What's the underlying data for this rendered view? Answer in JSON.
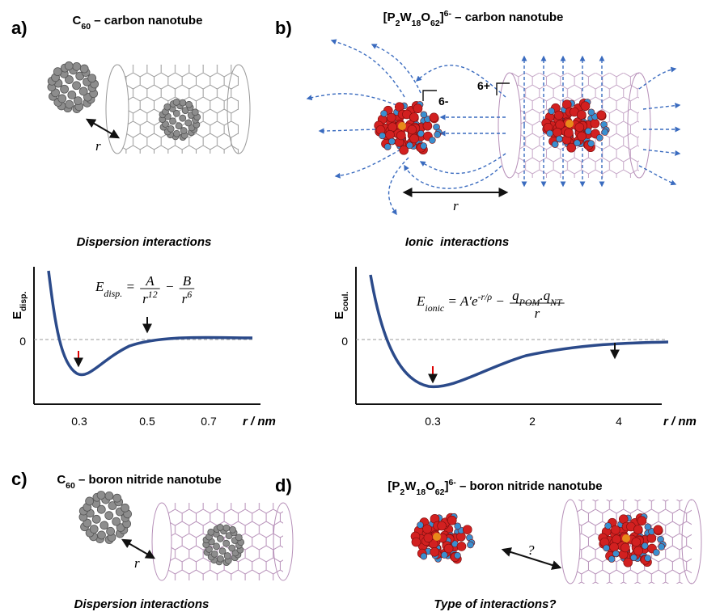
{
  "panels": {
    "a": {
      "label": "a)",
      "title": [
        {
          "text": "C"
        },
        {
          "text": "60",
          "style": "sub"
        },
        {
          "text": " – carbon nanotube"
        }
      ],
      "distance_label": "r"
    },
    "b": {
      "label": "b)",
      "title": [
        {
          "text": "[P"
        },
        {
          "text": "2",
          "style": "sub"
        },
        {
          "text": "W"
        },
        {
          "text": "18",
          "style": "sub"
        },
        {
          "text": "O"
        },
        {
          "text": "62",
          "style": "sub"
        },
        {
          "text": "]"
        },
        {
          "text": "6-",
          "style": "sup"
        },
        {
          "text": " – carbon nanotube"
        }
      ],
      "anion_charge": "6-",
      "tube_charge": "6+",
      "distance_label": "r"
    },
    "c": {
      "label": "c)",
      "title": [
        {
          "text": "C"
        },
        {
          "text": "60",
          "style": "sub"
        },
        {
          "text": " – boron nitride nanotube"
        }
      ],
      "distance_label": "r",
      "caption": "Dispersion interactions"
    },
    "d": {
      "label": "d)",
      "title": [
        {
          "text": "[P"
        },
        {
          "text": "2",
          "style": "sub"
        },
        {
          "text": "W"
        },
        {
          "text": "18",
          "style": "sub"
        },
        {
          "text": "O"
        },
        {
          "text": "62",
          "style": "sub"
        },
        {
          "text": "]"
        },
        {
          "text": "6-",
          "style": "sup"
        },
        {
          "text": " – boron nitride nanotube"
        }
      ],
      "unknown_label": "?",
      "caption": "Type of interactions?"
    }
  },
  "plots": {
    "dispersion": {
      "title": "Dispersion interactions",
      "y_label": [
        {
          "text": "E"
        },
        {
          "text": "disp.",
          "style": "sub"
        }
      ],
      "zero_label": "0",
      "equation": [
        {
          "seg": [
            {
              "text": "E"
            },
            {
              "text": "disp.",
              "style": "sub"
            },
            {
              "text": " = "
            }
          ]
        },
        {
          "num": [
            {
              "text": "A"
            }
          ],
          "den": [
            {
              "text": "r"
            },
            {
              "text": "12",
              "style": "sup"
            }
          ]
        },
        {
          "seg": [
            {
              "text": " − "
            }
          ]
        },
        {
          "num": [
            {
              "text": "B"
            }
          ],
          "den": [
            {
              "text": "r"
            },
            {
              "text": "6",
              "style": "sup"
            }
          ]
        }
      ],
      "x_tick_labels": [
        "0.3",
        "0.5",
        "0.7"
      ],
      "x_label": "r / nm"
    },
    "ionic": {
      "title": "Ionic  interactions",
      "y_label": [
        {
          "text": "E"
        },
        {
          "text": "coul.",
          "style": "sub"
        }
      ],
      "zero_label": "0",
      "equation": [
        {
          "seg": [
            {
              "text": "E"
            },
            {
              "text": "ionic",
              "style": "sub"
            },
            {
              "text": " = A′e"
            },
            {
              "text": "-r/ρ",
              "style": "sup"
            },
            {
              "text": " − "
            }
          ]
        },
        {
          "num": [
            {
              "text": "q"
            },
            {
              "text": "POM",
              "style": "sub"
            },
            {
              "text": ".q"
            },
            {
              "text": "NT",
              "style": "sub"
            }
          ],
          "den": [
            {
              "text": "r"
            }
          ]
        }
      ],
      "x_tick_labels": [
        "0.3",
        "2",
        "4"
      ],
      "x_label": "r / nm"
    }
  }
}
